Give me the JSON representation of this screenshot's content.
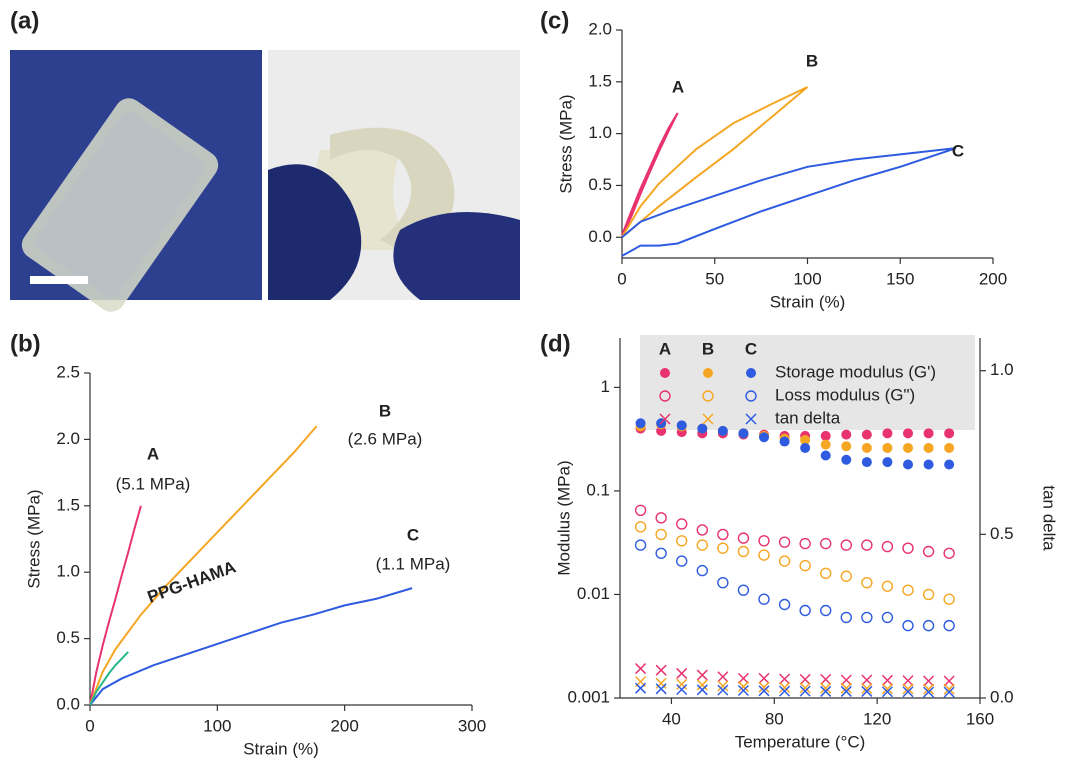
{
  "figure_a": {
    "label": "(a)"
  },
  "chart_data": [
    {
      "type": "line",
      "label": "(b)",
      "xlabel": "Strain (%)",
      "ylabel": "Stress (MPa)",
      "xlim": [
        0,
        300
      ],
      "xticks": [
        0,
        100,
        200,
        300
      ],
      "ylim": [
        0,
        2.5
      ],
      "yticks": [
        {
          "value": 0,
          "label": "0.0"
        },
        {
          "value": 0.5,
          "label": "0.5"
        },
        {
          "value": 1,
          "label": "1.0"
        },
        {
          "value": 1.5,
          "label": "1.5"
        },
        {
          "value": 2,
          "label": "2.0"
        },
        {
          "value": 2.5,
          "label": "2.5"
        }
      ],
      "series": [
        {
          "name": "A",
          "color": "#e8336e",
          "x": [
            0,
            5,
            10,
            15,
            20,
            25,
            30,
            35,
            40
          ],
          "values": [
            0,
            0.25,
            0.45,
            0.63,
            0.8,
            0.98,
            1.15,
            1.33,
            1.5
          ]
        },
        {
          "name": "B",
          "color": "#f5a623",
          "x": [
            0,
            10,
            20,
            40,
            60,
            80,
            100,
            120,
            140,
            160,
            178
          ],
          "values": [
            0,
            0.25,
            0.42,
            0.68,
            0.9,
            1.1,
            1.3,
            1.5,
            1.7,
            1.9,
            2.1
          ]
        },
        {
          "name": "C",
          "color": "#2e5be0",
          "x": [
            0,
            10,
            25,
            50,
            75,
            100,
            125,
            150,
            175,
            200,
            225,
            253
          ],
          "values": [
            0,
            0.12,
            0.2,
            0.3,
            0.38,
            0.46,
            0.54,
            0.62,
            0.68,
            0.75,
            0.8,
            0.88
          ]
        },
        {
          "name": "PPG-HAMA",
          "color": "#27b58a",
          "x": [
            0,
            5,
            10,
            15,
            20,
            25,
            30
          ],
          "values": [
            0,
            0.1,
            0.17,
            0.24,
            0.3,
            0.35,
            0.4
          ]
        }
      ],
      "annotations": [
        "(5.1 MPa)",
        "(2.6 MPa)",
        "(1.1 MPa)"
      ]
    },
    {
      "type": "line",
      "label": "(c)",
      "xlabel": "Strain (%)",
      "ylabel": "Stress (MPa)",
      "xlim": [
        0,
        200
      ],
      "xticks": [
        0,
        50,
        100,
        150,
        200
      ],
      "ylim": [
        -0.2,
        2.0
      ],
      "yticks": [
        {
          "value": 0,
          "label": "0.0"
        },
        {
          "value": 0.5,
          "label": "0.5"
        },
        {
          "value": 1,
          "label": "1.0"
        },
        {
          "value": 1.5,
          "label": "1.5"
        },
        {
          "value": 2,
          "label": "2.0"
        }
      ],
      "series": [
        {
          "name": "A",
          "color": "#e8336e",
          "x": [
            0,
            5,
            10,
            15,
            20,
            25,
            30,
            25,
            20,
            15,
            10,
            5,
            0
          ],
          "values": [
            0,
            0.2,
            0.42,
            0.63,
            0.83,
            1.02,
            1.2,
            1.05,
            0.87,
            0.67,
            0.47,
            0.25,
            0.02
          ]
        },
        {
          "name": "B",
          "color": "#f5a623",
          "x": [
            0,
            10,
            20,
            40,
            60,
            80,
            100,
            80,
            60,
            40,
            20,
            10,
            0
          ],
          "values": [
            0,
            0.15,
            0.3,
            0.58,
            0.85,
            1.15,
            1.45,
            1.28,
            1.1,
            0.85,
            0.52,
            0.3,
            0
          ]
        },
        {
          "name": "C",
          "color": "#2e5be0",
          "x": [
            0,
            10,
            20,
            30,
            50,
            75,
            100,
            125,
            150,
            180,
            150,
            125,
            100,
            75,
            50,
            25,
            10,
            0
          ],
          "values": [
            -0.18,
            -0.08,
            -0.08,
            -0.06,
            0.08,
            0.25,
            0.4,
            0.55,
            0.68,
            0.86,
            0.8,
            0.75,
            0.68,
            0.55,
            0.4,
            0.25,
            0.15,
            0
          ]
        }
      ]
    },
    {
      "type": "scatter",
      "label": "(d)",
      "xlabel": "Temperature (°C)",
      "ylabel": "Modulus (MPa)",
      "y2label": "tan delta",
      "xlim": [
        20,
        160
      ],
      "xticks": [
        40,
        80,
        120,
        160
      ],
      "ylog": true,
      "ylim": [
        0.001,
        3
      ],
      "yticks": [
        0.001,
        0.01,
        0.1,
        1
      ],
      "y2lim": [
        0,
        1.1
      ],
      "y2ticks": [
        {
          "value": 0,
          "label": "0.0"
        },
        {
          "value": 0.5,
          "label": "0.5"
        },
        {
          "value": 1,
          "label": "1.0"
        }
      ],
      "measures": [
        {
          "label": "Storage modulus (G')",
          "marker": "filled",
          "key": "storage"
        },
        {
          "label": "Loss modulus (G\")",
          "marker": "open",
          "key": "loss"
        },
        {
          "label": "tan delta",
          "marker": "cross",
          "key": "tan_delta",
          "axis": "y2"
        }
      ],
      "x": [
        28,
        36,
        44,
        52,
        60,
        68,
        76,
        84,
        92,
        100,
        108,
        116,
        124,
        132,
        140,
        148
      ],
      "series": [
        {
          "name": "A",
          "color": "#e8336e",
          "storage": [
            0.4,
            0.38,
            0.37,
            0.36,
            0.36,
            0.35,
            0.35,
            0.34,
            0.34,
            0.34,
            0.35,
            0.35,
            0.36,
            0.36,
            0.36,
            0.36
          ],
          "loss": [
            0.065,
            0.055,
            0.048,
            0.042,
            0.038,
            0.035,
            0.033,
            0.032,
            0.031,
            0.031,
            0.03,
            0.03,
            0.029,
            0.028,
            0.026,
            0.025
          ],
          "tan_delta": [
            0.09,
            0.085,
            0.075,
            0.07,
            0.065,
            0.06,
            0.06,
            0.058,
            0.057,
            0.057,
            0.055,
            0.055,
            0.054,
            0.053,
            0.052,
            0.052
          ]
        },
        {
          "name": "B",
          "color": "#f5a623",
          "storage": [
            0.42,
            0.44,
            0.42,
            0.4,
            0.38,
            0.36,
            0.34,
            0.32,
            0.31,
            0.28,
            0.27,
            0.26,
            0.26,
            0.26,
            0.26,
            0.26
          ],
          "loss": [
            0.045,
            0.038,
            0.033,
            0.03,
            0.028,
            0.026,
            0.024,
            0.021,
            0.019,
            0.016,
            0.015,
            0.013,
            0.012,
            0.011,
            0.01,
            0.009
          ],
          "tan_delta": [
            0.05,
            0.045,
            0.042,
            0.04,
            0.037,
            0.035,
            0.033,
            0.032,
            0.031,
            0.03,
            0.03,
            0.029,
            0.028,
            0.028,
            0.027,
            0.027
          ]
        },
        {
          "name": "C",
          "color": "#2e5be0",
          "storage": [
            0.45,
            0.45,
            0.43,
            0.4,
            0.38,
            0.36,
            0.33,
            0.3,
            0.26,
            0.22,
            0.2,
            0.19,
            0.19,
            0.18,
            0.18,
            0.18
          ],
          "loss": [
            0.03,
            0.025,
            0.021,
            0.017,
            0.013,
            0.011,
            0.009,
            0.008,
            0.007,
            0.007,
            0.006,
            0.006,
            0.006,
            0.005,
            0.005,
            0.005
          ],
          "tan_delta": [
            0.03,
            0.028,
            0.026,
            0.025,
            0.024,
            0.023,
            0.022,
            0.021,
            0.021,
            0.02,
            0.02,
            0.02,
            0.019,
            0.019,
            0.018,
            0.018
          ]
        }
      ]
    }
  ]
}
